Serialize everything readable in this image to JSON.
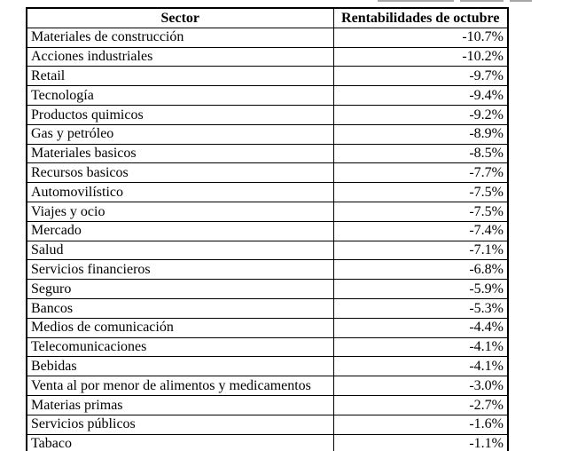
{
  "page": {
    "background": "#ffffff"
  },
  "colors": {
    "border": "#000000",
    "text": "#000000",
    "background": "#ffffff",
    "artifact_line": "#a6a6a6"
  },
  "chart_data": {
    "type": "table",
    "title": "",
    "columns": [
      "Sector",
      "Rentabilidades de octubre"
    ],
    "categories": [
      "Materiales de construcción",
      "Acciones industriales",
      "Retail",
      "Tecnología",
      "Productos quimicos",
      "Gas y petróleo",
      "Materiales basicos",
      "Recursos basicos",
      "Automovilístico",
      "Viajes y ocio",
      "Mercado",
      "Salud",
      "Servicios financieros",
      "Seguro",
      "Bancos",
      "Medios de comunicación",
      "Telecomunicaciones",
      "Bebidas",
      "Venta al por menor de alimentos y medicamentos",
      "Materias primas",
      "Servicios públicos",
      "Tabaco"
    ],
    "values": [
      -10.7,
      -10.2,
      -9.7,
      -9.4,
      -9.2,
      -8.9,
      -8.5,
      -7.7,
      -7.5,
      -7.5,
      -7.4,
      -7.1,
      -6.8,
      -5.9,
      -5.3,
      -4.4,
      -4.1,
      -4.1,
      -3.0,
      -2.7,
      -1.6,
      -1.1
    ],
    "rows": [
      [
        "Materiales de construcción",
        "-10.7%"
      ],
      [
        "Acciones industriales",
        "-10.2%"
      ],
      [
        "Retail",
        "-9.7%"
      ],
      [
        "Tecnología",
        "-9.4%"
      ],
      [
        "Productos quimicos",
        "-9.2%"
      ],
      [
        "Gas y petróleo",
        "-8.9%"
      ],
      [
        "Materiales basicos",
        "-8.5%"
      ],
      [
        "Recursos basicos",
        "-7.7%"
      ],
      [
        "Automovilístico",
        "-7.5%"
      ],
      [
        "Viajes y ocio",
        "-7.5%"
      ],
      [
        "Mercado",
        "-7.4%"
      ],
      [
        "Salud",
        "-7.1%"
      ],
      [
        "Servicios financieros",
        "-6.8%"
      ],
      [
        "Seguro",
        "-5.9%"
      ],
      [
        "Bancos",
        "-5.3%"
      ],
      [
        "Medios de comunicación",
        "-4.4%"
      ],
      [
        "Telecomunicaciones",
        "-4.1%"
      ],
      [
        "Bebidas",
        "-4.1%"
      ],
      [
        "Venta al por menor de alimentos y medicamentos",
        "-3.0%"
      ],
      [
        "Materias primas",
        "-2.7%"
      ],
      [
        "Servicios públicos",
        "-1.6%"
      ],
      [
        "Tabaco",
        "-1.1%"
      ]
    ]
  }
}
